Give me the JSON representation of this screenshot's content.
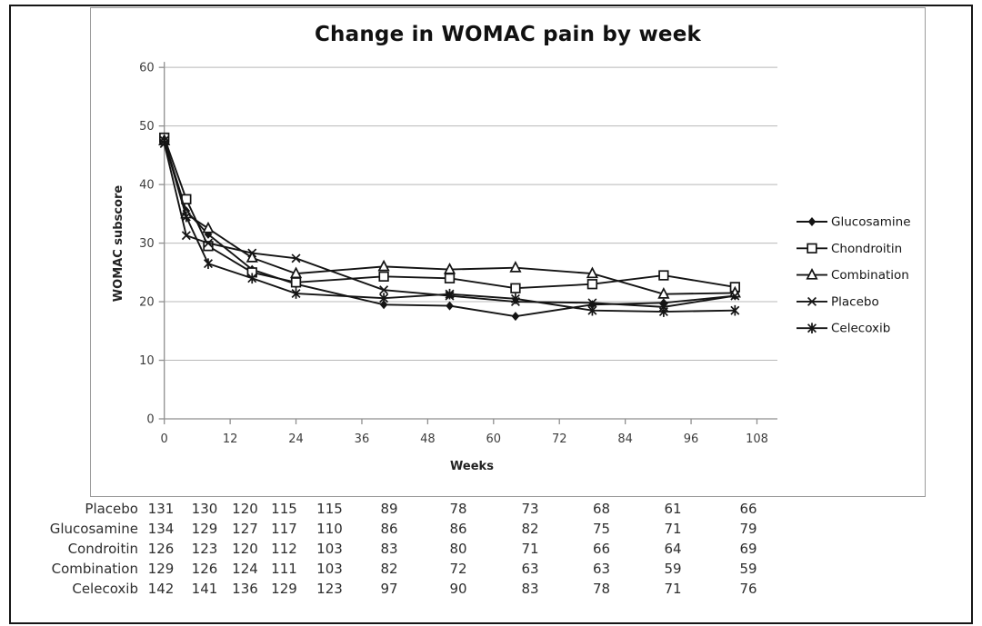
{
  "chart_data": {
    "type": "line",
    "title": "Change in WOMAC pain by week",
    "xlabel": "Weeks",
    "ylabel": "WOMAC subscore",
    "xlim": [
      0,
      112
    ],
    "ylim": [
      0,
      60
    ],
    "x_ticks": [
      0,
      12,
      24,
      36,
      48,
      60,
      72,
      84,
      96,
      108
    ],
    "y_ticks": [
      0,
      10,
      20,
      30,
      40,
      50,
      60
    ],
    "grid": true,
    "legend_position": "right-inside",
    "x": [
      0,
      4,
      8,
      16,
      24,
      40,
      52,
      64,
      78,
      91,
      104
    ],
    "series": [
      {
        "name": "Glucosamine",
        "marker": "diamond",
        "values": [
          47.5,
          35.5,
          31.5,
          25.5,
          23.0,
          19.5,
          19.3,
          17.5,
          19.5,
          19.8,
          21.0
        ]
      },
      {
        "name": "Chondroitin",
        "marker": "square",
        "values": [
          48.0,
          37.5,
          29.5,
          25.0,
          23.3,
          24.3,
          24.0,
          22.3,
          23.0,
          24.5,
          22.5
        ]
      },
      {
        "name": "Combination",
        "marker": "triangle",
        "values": [
          47.5,
          35.0,
          32.5,
          27.5,
          24.8,
          26.0,
          25.5,
          25.8,
          24.8,
          21.3,
          21.5
        ]
      },
      {
        "name": "Placebo",
        "marker": "x",
        "values": [
          47.0,
          31.3,
          30.0,
          28.3,
          27.4,
          22.0,
          21.0,
          20.0,
          19.8,
          19.1,
          21.0
        ]
      },
      {
        "name": "Celecoxib",
        "marker": "asterisk",
        "values": [
          47.5,
          34.5,
          26.5,
          24.0,
          21.4,
          20.6,
          21.3,
          20.5,
          18.5,
          18.3,
          18.5
        ]
      }
    ]
  },
  "table": {
    "rows": [
      {
        "label": "Placebo",
        "values": [
          131,
          130,
          120,
          115,
          115,
          89,
          78,
          73,
          68,
          61,
          66
        ]
      },
      {
        "label": "Glucosamine",
        "values": [
          134,
          129,
          127,
          117,
          110,
          86,
          86,
          82,
          75,
          71,
          79
        ]
      },
      {
        "label": "Condroitin",
        "values": [
          126,
          123,
          120,
          112,
          103,
          83,
          80,
          71,
          66,
          64,
          69
        ]
      },
      {
        "label": "Combination",
        "values": [
          129,
          126,
          124,
          111,
          103,
          82,
          72,
          63,
          63,
          59,
          59
        ]
      },
      {
        "label": "Celecoxib",
        "values": [
          142,
          141,
          136,
          129,
          123,
          97,
          90,
          83,
          78,
          71,
          76
        ]
      }
    ]
  },
  "colors": {
    "series_line": "#141414",
    "grid_line": "#b8b8b8",
    "axis_line": "#8f8f8f",
    "tick_text": "#3d3d3d",
    "title_text": "#111111"
  }
}
